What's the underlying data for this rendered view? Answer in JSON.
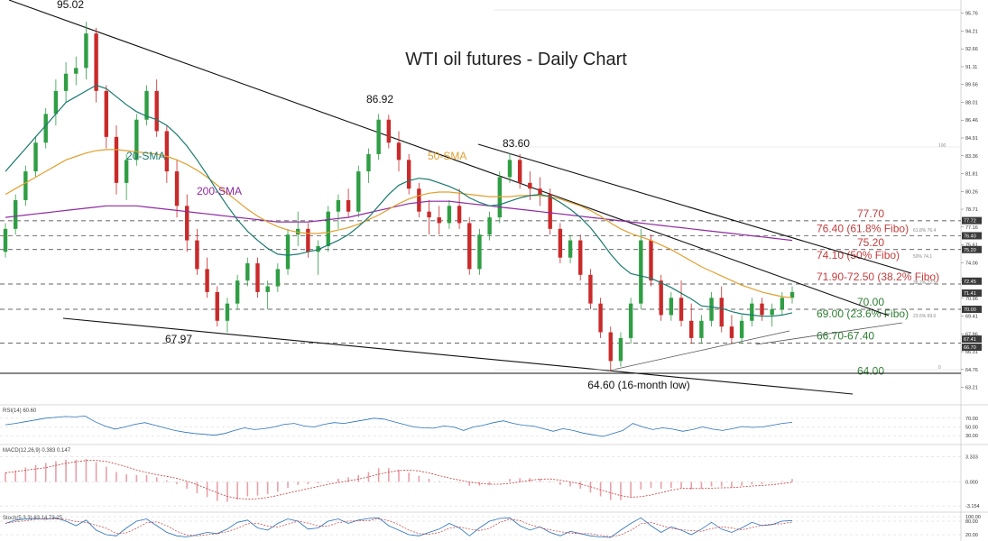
{
  "chart_data": [
    {
      "type": "candlestick",
      "title": "WTI oil futures  - Daily Chart",
      "ylim": [
        62.0,
        96.6
      ],
      "y_ticks": [
        "95.76",
        "94.21",
        "92.66",
        "91.11",
        "89.56",
        "88.01",
        "86.46",
        "84.91",
        "83.36",
        "81.81",
        "80.26",
        "78.71",
        "77.16",
        "75.61",
        "74.06",
        "72.51",
        "70.96",
        "69.41",
        "67.86",
        "66.31",
        "64.76",
        "63.21"
      ],
      "price_tags": [
        {
          "value": 77.72,
          "label": "77.72"
        },
        {
          "value": 76.4,
          "label": "76.40"
        },
        {
          "value": 75.2,
          "label": "75.20"
        },
        {
          "value": 72.45,
          "label": "72.45"
        },
        {
          "value": 71.41,
          "label": "71.41"
        },
        {
          "value": 70.0,
          "label": "70.00"
        },
        {
          "value": 67.41,
          "label": "67.41"
        },
        {
          "value": 66.7,
          "label": "66.70"
        }
      ],
      "levels": [
        {
          "value": 77.7,
          "label": "77.70",
          "color": "#c43c3c",
          "style": "dashed"
        },
        {
          "value": 76.4,
          "label": "76.40 (61.8% Fibo)",
          "color": "#c43c3c",
          "style": "dashed"
        },
        {
          "value": 75.2,
          "label": "75.20",
          "color": "#c43c3c",
          "style": "dashed"
        },
        {
          "value": 74.1,
          "label": "74.10 (50% Fibo)",
          "color": "#c43c3c",
          "style": "none"
        },
        {
          "value": 72.2,
          "label": "71.90-72.50 (38.2% Fibo)",
          "color": "#c43c3c",
          "style": "dashed"
        },
        {
          "value": 70.0,
          "label": "70.00",
          "color": "#2e7d32",
          "style": "dashed"
        },
        {
          "value": 69.0,
          "label": "69.00 (23.6% Fibo)",
          "color": "#2e7d32",
          "style": "none"
        },
        {
          "value": 67.05,
          "label": "66.70-67.40",
          "color": "#2e7d32",
          "style": "dashed"
        },
        {
          "value": 64.0,
          "label": "64.00",
          "color": "#2e7d32",
          "style": "solid"
        }
      ],
      "fibo_small_labels": [
        "61.8% 76.4",
        "50% 74.1",
        "38.2% 72.5",
        "23.6% 69.0",
        "100",
        "0"
      ],
      "annotations": [
        {
          "text": "95.02",
          "x": 0.045,
          "value": 95.02
        },
        {
          "text": "86.92",
          "x": 0.385,
          "value": 86.92
        },
        {
          "text": "83.60",
          "x": 0.515,
          "value": 83.6
        },
        {
          "text": "67.97",
          "x": 0.178,
          "value": 67.97
        },
        {
          "text": "64.60 (16-month low)",
          "x": 0.64,
          "value": 64.6
        }
      ],
      "series_labels": [
        {
          "name": "20-SMA",
          "color": "#1a7a6e"
        },
        {
          "name": "50-SMA",
          "color": "#e0a030"
        },
        {
          "name": "200-SMA",
          "color": "#8e2aa0"
        }
      ],
      "candles": [
        [
          75.0,
          77.5,
          74.5,
          77.0
        ],
        [
          77.0,
          80.0,
          76.5,
          79.5
        ],
        [
          79.5,
          82.5,
          79.0,
          82.0
        ],
        [
          82.0,
          85.0,
          81.5,
          84.5
        ],
        [
          84.5,
          87.5,
          84.0,
          87.0
        ],
        [
          87.0,
          90.0,
          86.0,
          89.0
        ],
        [
          89.0,
          91.5,
          88.0,
          90.5
        ],
        [
          90.5,
          92.0,
          89.5,
          91.0
        ],
        [
          91.0,
          95.02,
          90.0,
          94.0
        ],
        [
          94.0,
          94.5,
          88.0,
          89.0
        ],
        [
          89.0,
          89.5,
          84.0,
          85.0
        ],
        [
          85.0,
          86.0,
          80.0,
          81.0
        ],
        [
          81.0,
          83.5,
          79.5,
          83.0
        ],
        [
          83.0,
          87.0,
          82.5,
          86.5
        ],
        [
          86.5,
          89.5,
          86.0,
          89.0
        ],
        [
          89.0,
          90.0,
          85.0,
          85.5
        ],
        [
          85.5,
          86.0,
          81.0,
          82.0
        ],
        [
          82.0,
          83.0,
          78.0,
          79.0
        ],
        [
          79.0,
          80.0,
          75.0,
          76.0
        ],
        [
          76.0,
          77.0,
          73.0,
          73.5
        ],
        [
          73.5,
          74.5,
          71.0,
          71.5
        ],
        [
          71.5,
          72.0,
          68.5,
          69.0
        ],
        [
          69.0,
          71.0,
          67.97,
          70.5
        ],
        [
          70.5,
          73.0,
          70.0,
          72.5
        ],
        [
          72.5,
          74.5,
          72.0,
          74.0
        ],
        [
          74.0,
          74.5,
          71.0,
          71.5
        ],
        [
          71.5,
          72.5,
          70.0,
          72.0
        ],
        [
          72.0,
          74.0,
          71.5,
          73.5
        ],
        [
          73.5,
          77.0,
          73.0,
          76.5
        ],
        [
          76.5,
          78.5,
          75.5,
          77.0
        ],
        [
          77.0,
          77.5,
          74.5,
          75.0
        ],
        [
          75.0,
          76.0,
          73.0,
          75.5
        ],
        [
          75.5,
          79.0,
          75.0,
          78.5
        ],
        [
          78.5,
          80.0,
          77.0,
          79.5
        ],
        [
          79.5,
          80.5,
          78.0,
          78.5
        ],
        [
          78.5,
          82.5,
          78.0,
          82.0
        ],
        [
          82.0,
          84.0,
          81.0,
          83.5
        ],
        [
          83.5,
          87.0,
          83.0,
          86.5
        ],
        [
          86.5,
          86.92,
          84.0,
          84.5
        ],
        [
          84.5,
          85.5,
          82.0,
          83.0
        ],
        [
          83.0,
          83.5,
          80.0,
          80.5
        ],
        [
          80.5,
          81.0,
          78.0,
          78.5
        ],
        [
          78.5,
          79.5,
          76.5,
          78.0
        ],
        [
          78.0,
          79.0,
          76.5,
          77.5
        ],
        [
          77.5,
          79.5,
          77.0,
          79.0
        ],
        [
          79.0,
          80.5,
          77.0,
          77.5
        ],
        [
          77.5,
          78.0,
          73.0,
          73.5
        ],
        [
          73.5,
          77.0,
          73.0,
          76.5
        ],
        [
          76.5,
          78.5,
          76.0,
          78.0
        ],
        [
          78.0,
          82.0,
          77.5,
          81.5
        ],
        [
          81.5,
          83.6,
          81.0,
          83.0
        ],
        [
          83.0,
          83.5,
          80.5,
          81.0
        ],
        [
          81.0,
          82.0,
          79.5,
          80.5
        ],
        [
          80.5,
          81.5,
          79.0,
          80.0
        ],
        [
          80.0,
          80.5,
          76.5,
          77.0
        ],
        [
          77.0,
          77.5,
          74.0,
          74.5
        ],
        [
          74.5,
          76.5,
          74.0,
          76.0
        ],
        [
          76.0,
          76.5,
          72.5,
          73.0
        ],
        [
          73.0,
          73.5,
          70.0,
          70.5
        ],
        [
          70.5,
          71.0,
          67.5,
          68.0
        ],
        [
          68.0,
          68.5,
          64.6,
          65.5
        ],
        [
          65.5,
          68.0,
          65.0,
          67.5
        ],
        [
          67.5,
          71.0,
          67.0,
          70.5
        ],
        [
          70.5,
          77.0,
          70.0,
          76.0
        ],
        [
          76.0,
          76.5,
          72.0,
          72.5
        ],
        [
          72.5,
          73.0,
          69.0,
          69.5
        ],
        [
          69.5,
          71.5,
          69.0,
          71.0
        ],
        [
          71.0,
          72.5,
          68.5,
          69.0
        ],
        [
          69.0,
          70.5,
          67.0,
          67.5
        ],
        [
          67.5,
          69.5,
          67.0,
          69.0
        ],
        [
          69.0,
          71.5,
          68.5,
          71.0
        ],
        [
          71.0,
          72.0,
          68.0,
          68.5
        ],
        [
          68.5,
          69.5,
          67.0,
          67.5
        ],
        [
          67.5,
          69.5,
          67.0,
          69.0
        ],
        [
          69.0,
          71.0,
          68.5,
          70.5
        ],
        [
          70.5,
          71.0,
          69.0,
          69.5
        ],
        [
          69.5,
          70.5,
          68.5,
          70.0
        ],
        [
          70.0,
          71.5,
          69.5,
          71.0
        ],
        [
          71.0,
          72.0,
          70.5,
          71.5
        ]
      ],
      "sma20": [
        82,
        83,
        84,
        85,
        86,
        87,
        88,
        88.5,
        89,
        89.5,
        89.2,
        88.5,
        87.8,
        87.2,
        86.8,
        86.5,
        86,
        85.2,
        84.2,
        83,
        81.7,
        80.3,
        79,
        77.8,
        76.8,
        76,
        75.3,
        74.8,
        74.7,
        74.8,
        75,
        75.2,
        75.6,
        76,
        76.5,
        77.2,
        78,
        79,
        80,
        80.8,
        81.2,
        81.4,
        81.3,
        81,
        80.7,
        80.3,
        79.7,
        79.3,
        79,
        79.1,
        79.4,
        79.7,
        79.9,
        80,
        79.8,
        79.3,
        78.7,
        78,
        77.1,
        76,
        74.8,
        73.8,
        73.1,
        72.9,
        72.7,
        72.3,
        71.9,
        71.4,
        70.9,
        70.3,
        70.2,
        70.1,
        69.8,
        69.6,
        69.5,
        69.4,
        69.4,
        69.5,
        69.7
      ],
      "sma50": [
        80,
        80.5,
        81,
        81.5,
        82,
        82.5,
        83,
        83.3,
        83.6,
        83.8,
        83.9,
        83.9,
        83.8,
        83.7,
        83.6,
        83.5,
        83.3,
        83,
        82.6,
        82.1,
        81.5,
        80.8,
        80.1,
        79.4,
        78.7,
        78.1,
        77.6,
        77.2,
        76.9,
        76.7,
        76.6,
        76.6,
        76.7,
        76.9,
        77.1,
        77.4,
        77.8,
        78.2,
        78.7,
        79.2,
        79.6,
        79.9,
        80.1,
        80.2,
        80.2,
        80.1,
        80,
        79.9,
        79.8,
        79.8,
        79.8,
        79.9,
        79.9,
        79.9,
        79.8,
        79.6,
        79.3,
        79,
        78.6,
        78.1,
        77.5,
        77,
        76.6,
        76.3,
        76,
        75.6,
        75.2,
        74.7,
        74.2,
        73.7,
        73.3,
        72.9,
        72.5,
        72.1,
        71.8,
        71.5,
        71.3,
        71.1,
        71
      ],
      "sma200": [
        78,
        78.1,
        78.2,
        78.3,
        78.4,
        78.5,
        78.6,
        78.7,
        78.8,
        78.9,
        79,
        79,
        79,
        79,
        78.9,
        78.8,
        78.7,
        78.6,
        78.5,
        78.4,
        78.3,
        78.2,
        78.1,
        78,
        77.9,
        77.8,
        77.7,
        77.6,
        77.6,
        77.6,
        77.6,
        77.7,
        77.8,
        77.9,
        78,
        78.2,
        78.4,
        78.6,
        78.8,
        79,
        79.2,
        79.3,
        79.4,
        79.4,
        79.4,
        79.3,
        79.2,
        79.1,
        79,
        78.9,
        78.8,
        78.7,
        78.6,
        78.5,
        78.4,
        78.3,
        78.2,
        78.1,
        78,
        77.9,
        77.8,
        77.7,
        77.6,
        77.5,
        77.4,
        77.3,
        77.2,
        77.1,
        77,
        76.9,
        76.8,
        76.7,
        76.6,
        76.5,
        76.4,
        76.3,
        76.2,
        76.1,
        76
      ]
    },
    {
      "type": "line",
      "title": "RSI(14) 60.60",
      "ylim": [
        20,
        80
      ],
      "y_ticks": [
        "70.00",
        "50.00",
        "30.00"
      ],
      "values": [
        55,
        58,
        62,
        66,
        70,
        72,
        74,
        73,
        75,
        62,
        52,
        45,
        50,
        56,
        60,
        54,
        48,
        42,
        38,
        35,
        33,
        31,
        35,
        42,
        48,
        44,
        46,
        50,
        56,
        58,
        52,
        50,
        56,
        60,
        58,
        62,
        66,
        70,
        68,
        62,
        56,
        50,
        48,
        47,
        52,
        50,
        42,
        50,
        54,
        60,
        64,
        58,
        54,
        52,
        46,
        40,
        46,
        42,
        36,
        32,
        28,
        35,
        42,
        58,
        50,
        44,
        48,
        45,
        40,
        44,
        50,
        45,
        42,
        46,
        51,
        49,
        50,
        54,
        58,
        60.6
      ]
    },
    {
      "type": "line",
      "title": "MACD(12,26,9) 0.383 0.147",
      "ylim": [
        -3.5,
        3.6
      ],
      "y_ticks": [
        "3.333",
        "0.000",
        "-3.154"
      ],
      "values": [
        1.2,
        1.5,
        1.9,
        2.2,
        2.5,
        2.7,
        2.9,
        2.9,
        3.0,
        2.6,
        2.0,
        1.3,
        1.0,
        0.9,
        0.9,
        0.6,
        0.2,
        -0.3,
        -0.9,
        -1.5,
        -2.0,
        -2.5,
        -2.6,
        -2.3,
        -1.9,
        -1.8,
        -1.6,
        -1.3,
        -0.8,
        -0.4,
        -0.3,
        -0.2,
        0.1,
        0.4,
        0.6,
        0.9,
        1.3,
        1.8,
        1.8,
        1.6,
        1.2,
        0.8,
        0.4,
        0.1,
        0.0,
        -0.1,
        -0.5,
        -0.5,
        -0.4,
        0.0,
        0.4,
        0.5,
        0.5,
        0.4,
        0.1,
        -0.4,
        -0.6,
        -0.9,
        -1.4,
        -1.9,
        -2.4,
        -2.4,
        -2.0,
        -1.0,
        -0.8,
        -0.9,
        -0.8,
        -0.8,
        -1.0,
        -0.9,
        -0.6,
        -0.6,
        -0.7,
        -0.5,
        -0.3,
        -0.3,
        -0.1,
        0.1,
        0.38
      ]
    },
    {
      "type": "line",
      "title": "Stoch(5,3,3) 83.14 73.25",
      "ylim": [
        0,
        100
      ],
      "y_ticks": [
        "100.00",
        "80.00",
        "20.00"
      ],
      "values": [
        70,
        85,
        90,
        92,
        88,
        95,
        80,
        60,
        85,
        40,
        20,
        15,
        50,
        80,
        90,
        60,
        30,
        15,
        10,
        20,
        30,
        25,
        45,
        75,
        85,
        50,
        40,
        70,
        90,
        80,
        45,
        50,
        80,
        90,
        70,
        85,
        92,
        95,
        60,
        40,
        20,
        15,
        30,
        45,
        70,
        50,
        15,
        50,
        80,
        92,
        95,
        60,
        40,
        55,
        30,
        15,
        35,
        25,
        15,
        10,
        8,
        40,
        70,
        95,
        60,
        30,
        55,
        40,
        20,
        45,
        75,
        45,
        30,
        50,
        75,
        60,
        65,
        80,
        83
      ]
    }
  ]
}
